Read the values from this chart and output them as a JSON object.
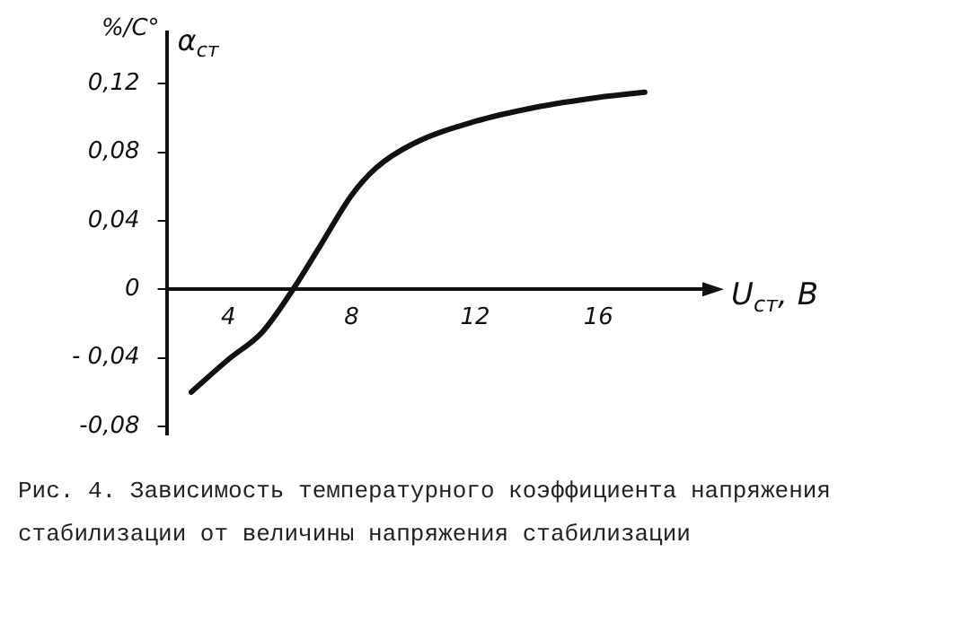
{
  "chart_data": {
    "type": "line",
    "xlabel": "U$_{ст}$, В",
    "ylabel": "α$_{ст}$",
    "annotations": [
      "%/C°",
      "Рис. 4. Зависимость температурного коэффициента напряжения стабилизации от величины напряжения стабилизации"
    ],
    "x": [
      2.8,
      4,
      5.1,
      6.1,
      7,
      8,
      8.8,
      10,
      12,
      13.9,
      16,
      17.5
    ],
    "series": [
      {
        "color": "#111111",
        "values": [
          -0.06,
          -0.041,
          -0.025,
          0,
          0.026,
          0.055,
          0.071,
          0.085,
          0.098,
          0.106,
          0.112,
          0.115
        ]
      }
    ],
    "xlim": [
      2,
      19.6
    ],
    "xticks": [
      4,
      8,
      12,
      16
    ],
    "ylim": [
      -0.085,
      0.15
    ],
    "yticks": [
      {
        "value": -0.08,
        "label": "-0,08"
      },
      {
        "value": -0.04,
        "label": "- 0,04"
      },
      0,
      {
        "value": 0.04,
        "label": "0,04"
      },
      {
        "value": 0.08,
        "label": "0,08"
      },
      {
        "value": 0.12,
        "label": "0,12"
      }
    ],
    "grid": false,
    "legend": false,
    "marker": "none",
    "line_style": "solid"
  }
}
